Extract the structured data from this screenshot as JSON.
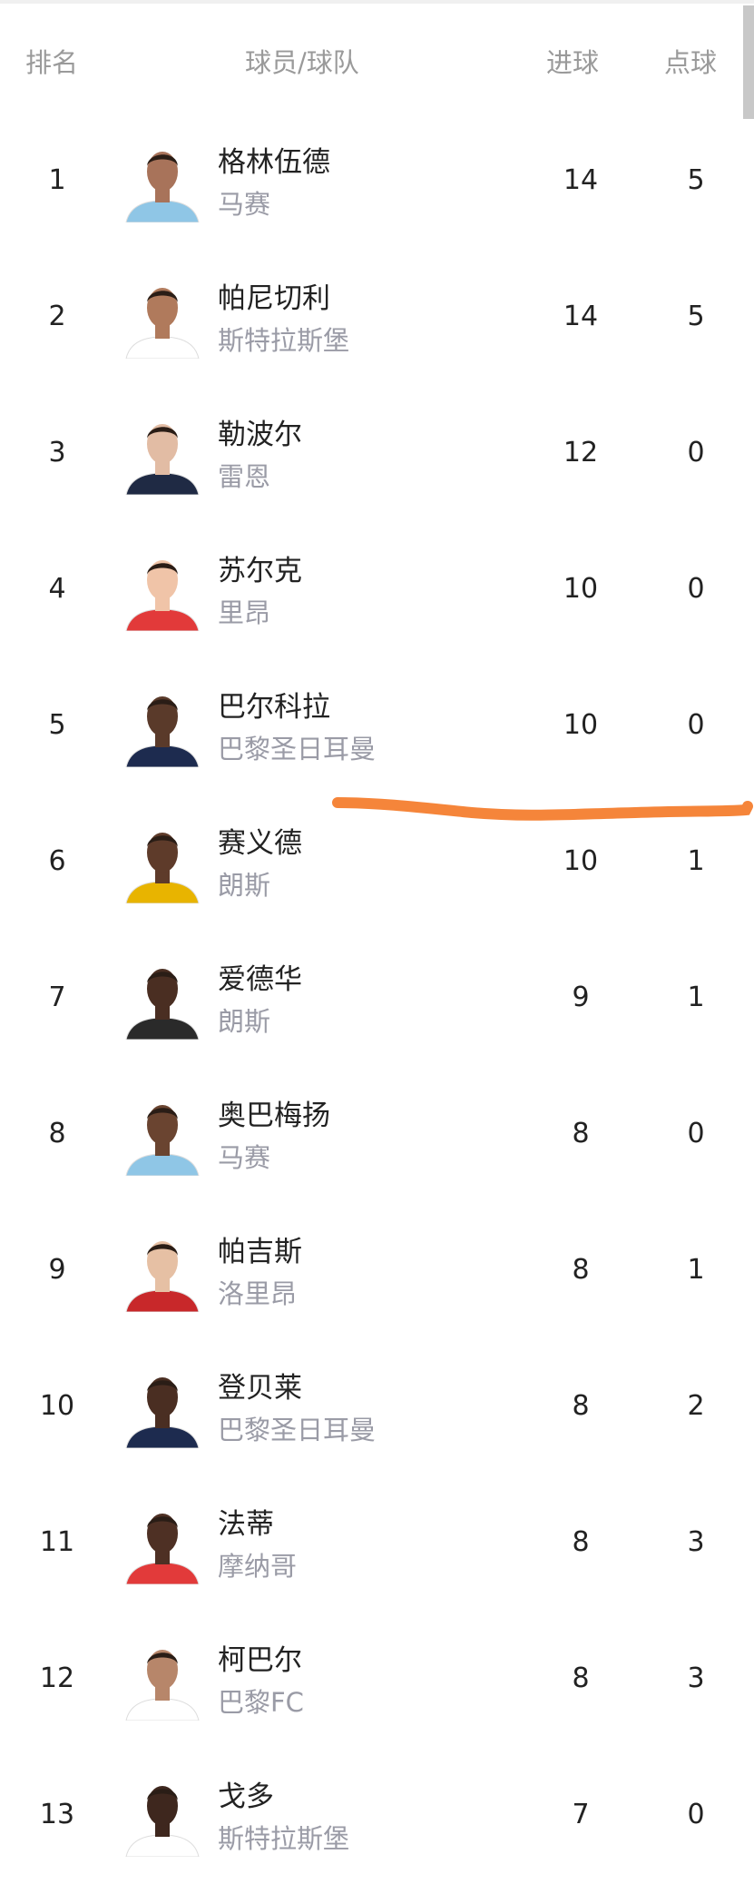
{
  "header": {
    "rank": "排名",
    "player_team": "球员/球队",
    "goals": "进球",
    "penalties": "点球"
  },
  "colors": {
    "annotation": "#f5853a",
    "muted": "#9a9ba6"
  },
  "rows": [
    {
      "rank": "1",
      "name": "格林伍德",
      "team": "马赛",
      "goals": "14",
      "penalties": "5",
      "kit": "#8fc6e6",
      "skin": "#a8735a"
    },
    {
      "rank": "2",
      "name": "帕尼切利",
      "team": "斯特拉斯堡",
      "goals": "14",
      "penalties": "5",
      "kit": "#ffffff",
      "skin": "#b07a5c"
    },
    {
      "rank": "3",
      "name": "勒波尔",
      "team": "雷恩",
      "goals": "12",
      "penalties": "0",
      "kit": "#1f2a44",
      "skin": "#e2bca4"
    },
    {
      "rank": "4",
      "name": "苏尔克",
      "team": "里昂",
      "goals": "10",
      "penalties": "0",
      "kit": "#e23a3a",
      "skin": "#f0c4a8"
    },
    {
      "rank": "5",
      "name": "巴尔科拉",
      "team": "巴黎圣日耳曼",
      "goals": "10",
      "penalties": "0",
      "kit": "#1d2b4f",
      "skin": "#5a3a2a"
    },
    {
      "rank": "6",
      "name": "赛义德",
      "team": "朗斯",
      "goals": "10",
      "penalties": "1",
      "kit": "#e8b400",
      "skin": "#5e3b2a"
    },
    {
      "rank": "7",
      "name": "爱德华",
      "team": "朗斯",
      "goals": "9",
      "penalties": "1",
      "kit": "#2a2a2a",
      "skin": "#4a2e22"
    },
    {
      "rank": "8",
      "name": "奥巴梅扬",
      "team": "马赛",
      "goals": "8",
      "penalties": "0",
      "kit": "#8fc6e6",
      "skin": "#6a4430"
    },
    {
      "rank": "9",
      "name": "帕吉斯",
      "team": "洛里昂",
      "goals": "8",
      "penalties": "1",
      "kit": "#c8282a",
      "skin": "#e6c0a4"
    },
    {
      "rank": "10",
      "name": "登贝莱",
      "team": "巴黎圣日耳曼",
      "goals": "8",
      "penalties": "2",
      "kit": "#1d2b4f",
      "skin": "#4a2e22"
    },
    {
      "rank": "11",
      "name": "法蒂",
      "team": "摩纳哥",
      "goals": "8",
      "penalties": "3",
      "kit": "#e23a3a",
      "skin": "#4e3024"
    },
    {
      "rank": "12",
      "name": "柯巴尔",
      "team": "巴黎FC",
      "goals": "8",
      "penalties": "3",
      "kit": "#ffffff",
      "skin": "#b7866a"
    },
    {
      "rank": "13",
      "name": "戈多",
      "team": "斯特拉斯堡",
      "goals": "7",
      "penalties": "0",
      "kit": "#ffffff",
      "skin": "#3e271e"
    }
  ]
}
